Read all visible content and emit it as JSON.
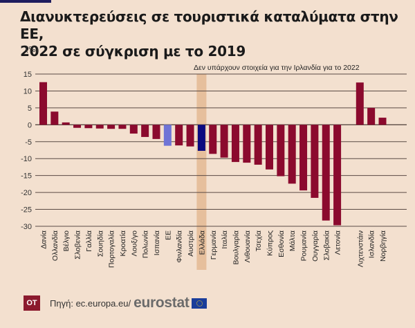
{
  "header": {
    "title_line1": "Διανυκτερεύσεις σε τουριστικά καταλύματα στην ΕΕ,",
    "title_line2": "2022 σε σύγκριση με το 2019",
    "unit": "(%)"
  },
  "footer": {
    "logo": "OT",
    "source_label": "Πηγή: ec.europa.eu/",
    "brand": "eurostat"
  },
  "colors": {
    "background": "#f3e0cf",
    "bar_default": "#8b0a2e",
    "bar_eu": "#6f74d6",
    "bar_greece": "#0b0a80",
    "highlight_band": "#e6bf9c",
    "gridline": "#5a4a44",
    "top_accent": "#1f1d5e"
  },
  "chart_data": {
    "type": "bar",
    "title": "Διανυκτερεύσεις σε τουριστικά καταλύματα στην ΕΕ, 2022 σε σύγκριση με το 2019",
    "ylabel": "(%)",
    "xlabel": "",
    "ylim": [
      -30,
      15
    ],
    "yticks": [
      15,
      10,
      5,
      0,
      -5,
      -10,
      -15,
      -20,
      -25,
      -30
    ],
    "grid": true,
    "annotation": "Δεν υπάρχουν στοιχεία για την Ιρλανδία για το 2022",
    "highlight_category": "Ελλάδα",
    "categories": [
      "Δανία",
      "Ολλανδία",
      "Βέλγιο",
      "Σλοβενία",
      "Γαλλία",
      "Σουηδία",
      "Πορτογαλία",
      "Κροατία",
      "Λουξ/γο",
      "Πολωνία",
      "Ισπανία",
      "ΕΕ",
      "Φινλανδία",
      "Αυστρία",
      "Ελλάδα",
      "Γερμανία",
      "Ιταλία",
      "Βουλγαρία",
      "Λιθουανία",
      "Τσεχία",
      "Κύπρος",
      "Εσθονία",
      "Μάλτα",
      "Ρουμανία",
      "Ουγγαρία",
      "Σλοβακία",
      "Λετονία",
      "",
      "Λιχτενστάιν",
      "Ισλανδία",
      "Νορβηγία"
    ],
    "values": [
      12.6,
      3.9,
      0.7,
      -0.9,
      -1.0,
      -1.1,
      -1.2,
      -1.2,
      -2.6,
      -3.6,
      -4.2,
      -6.2,
      -6.1,
      -6.4,
      -7.7,
      -8.6,
      -9.7,
      -11.0,
      -11.2,
      -11.8,
      -13.2,
      -15.2,
      -17.4,
      -19.4,
      -21.6,
      -28.3,
      -29.7,
      null,
      12.5,
      5.0,
      2.1
    ]
  }
}
